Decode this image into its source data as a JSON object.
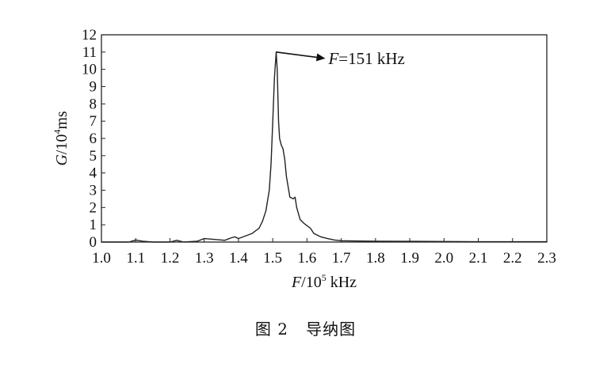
{
  "chart_data": {
    "type": "line",
    "xlabel": {
      "var": "F",
      "rest": "/10",
      "sup": "5",
      "unit": " kHz"
    },
    "ylabel": {
      "var": "G",
      "rest": "/10",
      "sup": "4",
      "unit": "ms"
    },
    "xlim": [
      1.0,
      2.3
    ],
    "ylim": [
      0,
      12
    ],
    "xticks": [
      "1.0",
      "1.1",
      "1.2",
      "1.3",
      "1.4",
      "1.5",
      "1.6",
      "1.7",
      "1.8",
      "1.9",
      "2.0",
      "2.1",
      "2.2",
      "2.3"
    ],
    "yticks": [
      "0",
      "1",
      "2",
      "3",
      "4",
      "5",
      "6",
      "7",
      "8",
      "9",
      "10",
      "11",
      "12"
    ],
    "grid": false,
    "annotation": {
      "var": "F",
      "text": "=151 kHz",
      "x": 1.51,
      "y": 11.0
    },
    "series": [
      {
        "x": [
          1.0,
          1.08,
          1.1,
          1.12,
          1.15,
          1.2,
          1.22,
          1.24,
          1.28,
          1.3,
          1.33,
          1.36,
          1.38,
          1.39,
          1.4,
          1.42,
          1.44,
          1.46,
          1.47,
          1.48,
          1.49,
          1.495,
          1.5,
          1.505,
          1.51,
          1.513,
          1.517,
          1.52,
          1.525,
          1.53,
          1.535,
          1.54,
          1.55,
          1.56,
          1.565,
          1.57,
          1.58,
          1.59,
          1.6,
          1.61,
          1.62,
          1.64,
          1.66,
          1.68,
          1.7,
          1.75,
          1.8,
          1.9,
          2.0,
          2.1,
          2.2,
          2.3
        ],
        "y": [
          0,
          0,
          0.12,
          0.05,
          0,
          0,
          0.1,
          0,
          0.05,
          0.2,
          0.15,
          0.1,
          0.25,
          0.3,
          0.2,
          0.35,
          0.5,
          0.8,
          1.2,
          1.8,
          3.0,
          4.5,
          7.0,
          9.5,
          11.0,
          10.0,
          7.0,
          6.0,
          5.6,
          5.4,
          4.8,
          3.8,
          2.6,
          2.5,
          2.6,
          2.0,
          1.3,
          1.1,
          0.95,
          0.8,
          0.5,
          0.3,
          0.2,
          0.12,
          0.08,
          0.06,
          0.05,
          0.04,
          0.03,
          0.02,
          0.02,
          0.02
        ]
      }
    ]
  },
  "caption": {
    "prefix": "图 2",
    "title": "导纳图"
  }
}
